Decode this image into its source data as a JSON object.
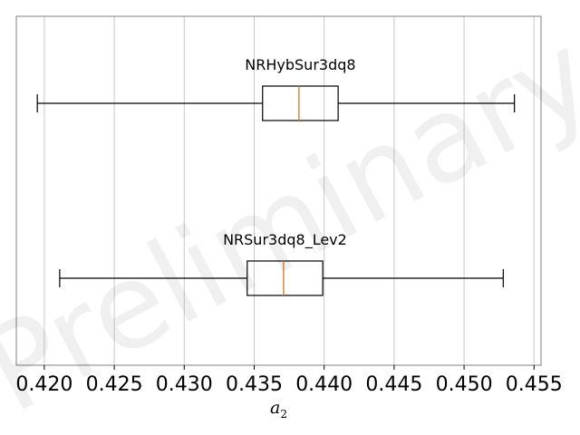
{
  "chart_data": {
    "type": "boxplot",
    "orientation": "horizontal",
    "xlim": [
      0.418,
      0.4555
    ],
    "xticks": [
      0.42,
      0.425,
      0.43,
      0.435,
      0.44,
      0.445,
      0.45,
      0.455
    ],
    "xtick_labels": [
      "0.420",
      "0.425",
      "0.430",
      "0.435",
      "0.440",
      "0.445",
      "0.450",
      "0.455"
    ],
    "xlabel_main": "a",
    "xlabel_sub": "2",
    "grid": "vertical",
    "watermark": "Preliminary",
    "colors": {
      "box": "#000000",
      "median": "#e07b2a",
      "grid": "#c8c8c8",
      "frame": "#808080"
    },
    "series": [
      {
        "name": "NRHybSur3dq8",
        "whisker_low": 0.4195,
        "q1": 0.4356,
        "median": 0.4382,
        "q3": 0.441,
        "whisker_high": 0.4536
      },
      {
        "name": "NRSur3dq8_Lev2",
        "whisker_low": 0.4211,
        "q1": 0.4345,
        "median": 0.4371,
        "q3": 0.4399,
        "whisker_high": 0.4528
      }
    ]
  }
}
